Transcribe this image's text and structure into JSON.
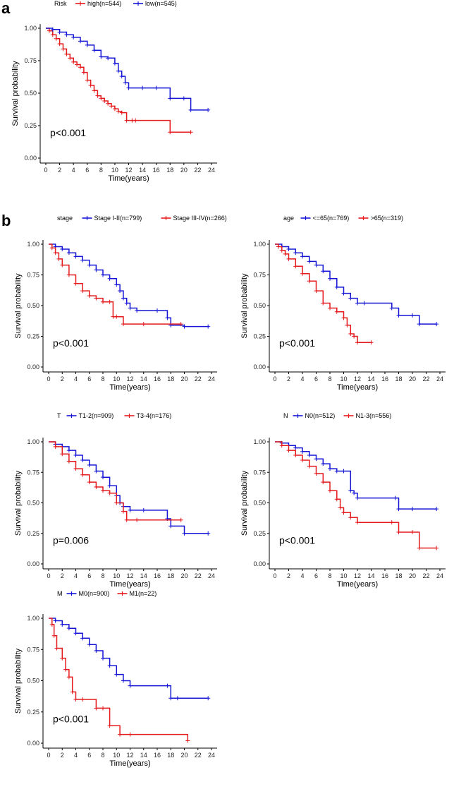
{
  "panel_letters": [
    "a",
    "b"
  ],
  "colors": {
    "red": "#e41a1c",
    "blue": "#1515d6",
    "axis": "#000000"
  },
  "chart_data": [
    {
      "id": "risk",
      "type": "line",
      "subtype": "kaplan-meier",
      "legend_title": "Risk",
      "xlabel": "Time(years)",
      "ylabel": "Survival probability",
      "xlim": [
        0,
        24
      ],
      "ylim": [
        0,
        1
      ],
      "xticks": [
        0,
        2,
        4,
        6,
        8,
        10,
        12,
        14,
        16,
        18,
        20,
        22,
        24
      ],
      "yticks": [
        0,
        0.25,
        0.5,
        0.75,
        1
      ],
      "ytick_labels": [
        "0.00",
        "0.25",
        "0.50",
        "0.75",
        "1.00"
      ],
      "pvalue": "p<0.001",
      "series": [
        {
          "name": "high(n=544)",
          "color": "#e41a1c",
          "x": [
            0,
            0.5,
            1,
            1.5,
            2,
            2.5,
            3,
            3.5,
            4,
            4.5,
            5,
            5.5,
            6,
            6.5,
            7,
            7.5,
            8,
            8.5,
            9,
            9.5,
            10,
            10.5,
            11,
            11.7,
            12.5,
            13,
            18,
            21
          ],
          "y": [
            1,
            0.98,
            0.95,
            0.92,
            0.88,
            0.84,
            0.8,
            0.77,
            0.74,
            0.72,
            0.7,
            0.66,
            0.6,
            0.56,
            0.52,
            0.48,
            0.46,
            0.44,
            0.42,
            0.4,
            0.38,
            0.36,
            0.35,
            0.29,
            0.29,
            0.29,
            0.2,
            0.2
          ]
        },
        {
          "name": "low(n=545)",
          "color": "#1515d6",
          "x": [
            0,
            1,
            2,
            3,
            4,
            5,
            6,
            7,
            8,
            9,
            10,
            10.5,
            11,
            11.5,
            12,
            14,
            16,
            18,
            20,
            21,
            23.5
          ],
          "y": [
            1,
            0.99,
            0.97,
            0.95,
            0.93,
            0.9,
            0.87,
            0.83,
            0.78,
            0.77,
            0.73,
            0.67,
            0.63,
            0.58,
            0.54,
            0.54,
            0.54,
            0.46,
            0.46,
            0.37,
            0.37
          ]
        }
      ]
    },
    {
      "id": "stage",
      "type": "line",
      "subtype": "kaplan-meier",
      "legend_title": "stage",
      "xlabel": "Time(years)",
      "ylabel": "Survival probability",
      "xlim": [
        0,
        24
      ],
      "ylim": [
        0,
        1
      ],
      "xticks": [
        0,
        2,
        4,
        6,
        8,
        10,
        12,
        14,
        16,
        18,
        20,
        22,
        24
      ],
      "yticks": [
        0,
        0.25,
        0.5,
        0.75,
        1
      ],
      "ytick_labels": [
        "0.00",
        "0.25",
        "0.50",
        "0.75",
        "1.00"
      ],
      "pvalue": "p<0.001",
      "series": [
        {
          "name": "Stage I-II(n=799)",
          "color": "#1515d6",
          "x": [
            0,
            1,
            2,
            3,
            4,
            5,
            6,
            7,
            8,
            9,
            10,
            10.5,
            11,
            11.5,
            12,
            13,
            16,
            17.5,
            18,
            20,
            23.5
          ],
          "y": [
            1,
            0.98,
            0.96,
            0.93,
            0.9,
            0.87,
            0.83,
            0.79,
            0.75,
            0.72,
            0.67,
            0.62,
            0.56,
            0.52,
            0.48,
            0.46,
            0.46,
            0.4,
            0.34,
            0.33,
            0.33
          ]
        },
        {
          "name": "Stage III-IV(n=266)",
          "color": "#e41a1c",
          "x": [
            0,
            0.5,
            1,
            1.5,
            2,
            3,
            4,
            5,
            6,
            7,
            8,
            9,
            9.5,
            10,
            11,
            14,
            19.5
          ],
          "y": [
            1,
            0.97,
            0.93,
            0.88,
            0.83,
            0.75,
            0.68,
            0.62,
            0.58,
            0.56,
            0.53,
            0.53,
            0.41,
            0.41,
            0.35,
            0.35,
            0.35
          ]
        }
      ]
    },
    {
      "id": "age",
      "type": "line",
      "subtype": "kaplan-meier",
      "legend_title": "age",
      "xlabel": "Time(years)",
      "ylabel": "Survival probability",
      "xlim": [
        0,
        24
      ],
      "ylim": [
        0,
        1
      ],
      "xticks": [
        0,
        2,
        4,
        6,
        8,
        10,
        12,
        14,
        16,
        18,
        20,
        22,
        24
      ],
      "yticks": [
        0,
        0.25,
        0.5,
        0.75,
        1
      ],
      "ytick_labels": [
        "0.00",
        "0.25",
        "0.50",
        "0.75",
        "1.00"
      ],
      "pvalue": "p<0.001",
      "series": [
        {
          "name": "<=65(n=769)",
          "color": "#1515d6",
          "x": [
            0,
            1,
            2,
            3,
            4,
            5,
            6,
            7,
            8,
            9,
            10,
            11,
            12,
            13,
            17,
            18,
            20,
            21,
            23.5
          ],
          "y": [
            1,
            0.98,
            0.96,
            0.93,
            0.9,
            0.86,
            0.83,
            0.78,
            0.72,
            0.65,
            0.6,
            0.56,
            0.52,
            0.52,
            0.48,
            0.42,
            0.42,
            0.35,
            0.35
          ]
        },
        {
          "name": ">65(n=319)",
          "color": "#e41a1c",
          "x": [
            0,
            0.5,
            1,
            1.5,
            2,
            3,
            4,
            5,
            6,
            7,
            8,
            9,
            10,
            10.5,
            11,
            11.5,
            12,
            14
          ],
          "y": [
            1,
            0.98,
            0.95,
            0.92,
            0.88,
            0.82,
            0.76,
            0.7,
            0.62,
            0.52,
            0.48,
            0.45,
            0.4,
            0.34,
            0.27,
            0.25,
            0.2,
            0.2
          ]
        }
      ]
    },
    {
      "id": "t",
      "type": "line",
      "subtype": "kaplan-meier",
      "legend_title": "T",
      "xlabel": "Time(years)",
      "ylabel": "Survival probability",
      "xlim": [
        0,
        24
      ],
      "ylim": [
        0,
        1
      ],
      "xticks": [
        0,
        2,
        4,
        6,
        8,
        10,
        12,
        14,
        16,
        18,
        20,
        22,
        24
      ],
      "yticks": [
        0,
        0.25,
        0.5,
        0.75,
        1
      ],
      "ytick_labels": [
        "0.00",
        "0.25",
        "0.50",
        "0.75",
        "1.00"
      ],
      "pvalue": "p=0.006",
      "series": [
        {
          "name": "T1-2(n=909)",
          "color": "#1515d6",
          "x": [
            0,
            1,
            2,
            3,
            4,
            5,
            6,
            7,
            8,
            9,
            10,
            10.5,
            11,
            12,
            14,
            17.5,
            18,
            20,
            23.5
          ],
          "y": [
            1,
            0.98,
            0.96,
            0.93,
            0.89,
            0.85,
            0.81,
            0.76,
            0.71,
            0.64,
            0.56,
            0.5,
            0.47,
            0.44,
            0.44,
            0.37,
            0.31,
            0.25,
            0.25
          ]
        },
        {
          "name": "T3-4(n=176)",
          "color": "#e41a1c",
          "x": [
            0,
            1,
            2,
            3,
            4,
            5,
            6,
            7,
            8,
            9,
            10,
            11,
            11.5,
            13,
            19.5
          ],
          "y": [
            1,
            0.96,
            0.9,
            0.84,
            0.78,
            0.73,
            0.67,
            0.63,
            0.6,
            0.58,
            0.5,
            0.43,
            0.36,
            0.36,
            0.36
          ]
        }
      ]
    },
    {
      "id": "n",
      "type": "line",
      "subtype": "kaplan-meier",
      "legend_title": "N",
      "xlabel": "Time(years)",
      "ylabel": "Survival probability",
      "xlim": [
        0,
        24
      ],
      "ylim": [
        0,
        1
      ],
      "xticks": [
        0,
        2,
        4,
        6,
        8,
        10,
        12,
        14,
        16,
        18,
        20,
        22,
        24
      ],
      "yticks": [
        0,
        0.25,
        0.5,
        0.75,
        1
      ],
      "ytick_labels": [
        "0.00",
        "0.25",
        "0.50",
        "0.75",
        "1.00"
      ],
      "pvalue": "p<0.001",
      "series": [
        {
          "name": "N0(n=512)",
          "color": "#1515d6",
          "x": [
            0,
            1,
            2,
            3,
            4,
            5,
            6,
            7,
            8,
            9,
            10,
            11,
            11.5,
            12,
            17.5,
            18,
            20,
            23.5
          ],
          "y": [
            1,
            0.99,
            0.97,
            0.95,
            0.92,
            0.89,
            0.86,
            0.82,
            0.78,
            0.76,
            0.76,
            0.6,
            0.58,
            0.54,
            0.54,
            0.45,
            0.45,
            0.45
          ]
        },
        {
          "name": "N1-3(n=556)",
          "color": "#e41a1c",
          "x": [
            0,
            1,
            2,
            3,
            4,
            5,
            6,
            7,
            8,
            9,
            9.5,
            10,
            11,
            12,
            17,
            18,
            20,
            21,
            23.5
          ],
          "y": [
            1,
            0.97,
            0.93,
            0.89,
            0.85,
            0.8,
            0.74,
            0.67,
            0.6,
            0.53,
            0.46,
            0.42,
            0.38,
            0.34,
            0.34,
            0.26,
            0.26,
            0.13,
            0.13
          ]
        }
      ]
    },
    {
      "id": "m",
      "type": "line",
      "subtype": "kaplan-meier",
      "legend_title": "M",
      "xlabel": "Time(years)",
      "ylabel": "Survival probability",
      "xlim": [
        0,
        24
      ],
      "ylim": [
        0,
        1
      ],
      "xticks": [
        0,
        2,
        4,
        6,
        8,
        10,
        12,
        14,
        16,
        18,
        20,
        22,
        24
      ],
      "yticks": [
        0,
        0.25,
        0.5,
        0.75,
        1
      ],
      "ytick_labels": [
        "0.00",
        "0.25",
        "0.50",
        "0.75",
        "1.00"
      ],
      "pvalue": "p<0.001",
      "series": [
        {
          "name": "M0(n=900)",
          "color": "#1515d6",
          "x": [
            0,
            1,
            2,
            3,
            4,
            5,
            6,
            7,
            8,
            9,
            10,
            11,
            12,
            17.5,
            18,
            19,
            23.5
          ],
          "y": [
            1,
            0.98,
            0.95,
            0.92,
            0.88,
            0.84,
            0.79,
            0.74,
            0.68,
            0.62,
            0.55,
            0.5,
            0.46,
            0.46,
            0.36,
            0.36,
            0.36
          ]
        },
        {
          "name": "M1(n=22)",
          "color": "#e41a1c",
          "x": [
            0,
            0.5,
            0.8,
            1.2,
            2,
            2.5,
            3,
            3.5,
            4,
            5,
            7,
            8,
            9,
            10.5,
            12,
            20.5
          ],
          "y": [
            1,
            0.95,
            0.86,
            0.76,
            0.68,
            0.59,
            0.53,
            0.41,
            0.35,
            0.35,
            0.28,
            0.28,
            0.14,
            0.07,
            0.07,
            0.02
          ]
        }
      ]
    }
  ]
}
